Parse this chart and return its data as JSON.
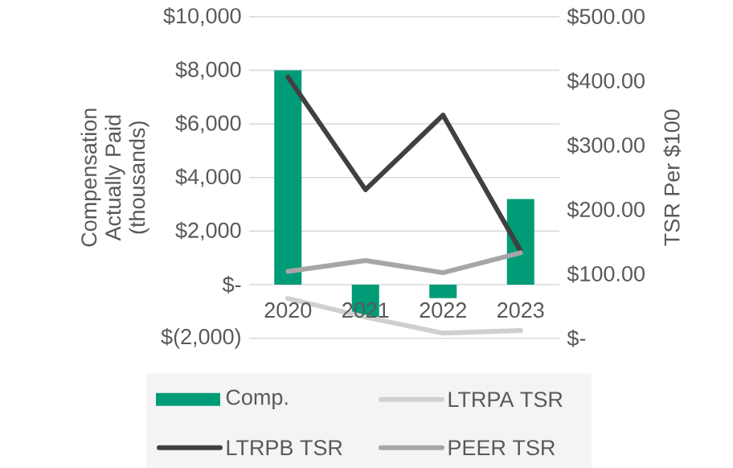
{
  "chart_data": {
    "type": "bar",
    "ylabel": "Compensation Actually Paid (thousands)",
    "y2label": "TSR Per $100",
    "categories": [
      "2020",
      "2021",
      "2022",
      "2023"
    ],
    "series": [
      {
        "name": "Comp.",
        "color": "#009b77",
        "values": [
          8000,
          -1200,
          -500,
          3200
        ]
      },
      {
        "name": "LTRPA TSR",
        "type": "line",
        "axis": "y2",
        "color": "#d0d0d0",
        "values": [
          62,
          33,
          8,
          12
        ]
      },
      {
        "name": "LTRPB TSR",
        "type": "line",
        "axis": "y2",
        "color": "#404040",
        "values": [
          406,
          231,
          347,
          136
        ]
      },
      {
        "name": "PEER TSR",
        "type": "line",
        "axis": "y2",
        "color": "#a6a6a6",
        "values": [
          104,
          121,
          102,
          133
        ]
      }
    ],
    "ylim": [
      -2000,
      10000
    ],
    "yticks": [
      {
        "value": -2000,
        "label": "$(2,000)"
      },
      {
        "value": 0,
        "label": "$-"
      },
      {
        "value": 2000,
        "label": "$2,000"
      },
      {
        "value": 4000,
        "label": "$4,000"
      },
      {
        "value": 6000,
        "label": "$6,000"
      },
      {
        "value": 8000,
        "label": "$8,000"
      },
      {
        "value": 10000,
        "label": "$10,000"
      }
    ],
    "y2lim": [
      0,
      500
    ],
    "y2ticks": [
      {
        "value": 0,
        "label": "$-"
      },
      {
        "value": 100,
        "label": "$100.00"
      },
      {
        "value": 200,
        "label": "$200.00"
      },
      {
        "value": 300,
        "label": "$300.00"
      },
      {
        "value": 400,
        "label": "$400.00"
      },
      {
        "value": 500,
        "label": "$500.00"
      }
    ],
    "grid": "y",
    "legend": "bottom"
  }
}
